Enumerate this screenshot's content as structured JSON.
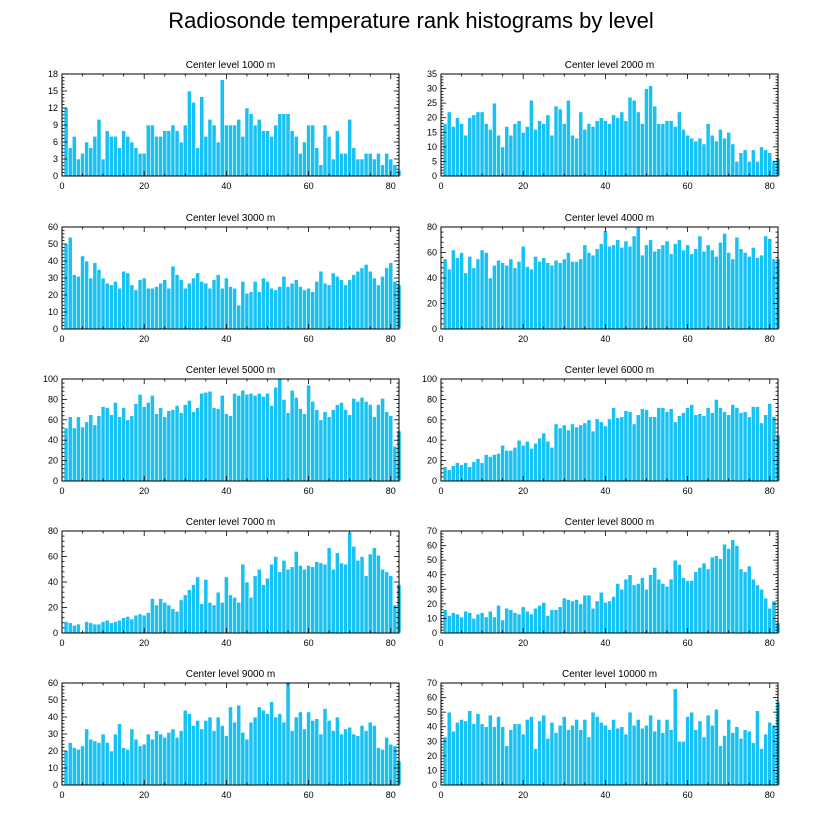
{
  "title": "Radiosonde temperature rank histograms by level",
  "colors": {
    "bar": "#16c1f3",
    "axis": "#000000",
    "background": "#ffffff"
  },
  "chart_data": [
    {
      "type": "bar",
      "title": "Center level 1000 m",
      "xlabel": "",
      "ylabel": "",
      "xlim": [
        0,
        82
      ],
      "ylim": [
        0,
        18
      ],
      "xticks": [
        0,
        20,
        40,
        60,
        80
      ],
      "yticks": [
        0,
        3,
        6,
        9,
        12,
        15,
        18
      ],
      "x_start": 1,
      "values": [
        12,
        5,
        7,
        3,
        4,
        6,
        5,
        7,
        10,
        3,
        8,
        7,
        7,
        5,
        8,
        7,
        6,
        5,
        4,
        4,
        9,
        9,
        7,
        7,
        8,
        8,
        9,
        8,
        6,
        9,
        15,
        13,
        5,
        14,
        7,
        10,
        9,
        6,
        17,
        9,
        9,
        9,
        10,
        7,
        12,
        11,
        9,
        10,
        8,
        8,
        7,
        9,
        11,
        11,
        11,
        8,
        7,
        4,
        6,
        9,
        9,
        5,
        2,
        9,
        7,
        3,
        8,
        4,
        4,
        10,
        5,
        3,
        3,
        4,
        4,
        3,
        4,
        2,
        4,
        3,
        2,
        1
      ]
    },
    {
      "type": "bar",
      "title": "Center level 2000 m",
      "xlabel": "",
      "ylabel": "",
      "xlim": [
        0,
        82
      ],
      "ylim": [
        0,
        35
      ],
      "xticks": [
        0,
        20,
        40,
        60,
        80
      ],
      "yticks": [
        0,
        5,
        10,
        15,
        20,
        25,
        30,
        35
      ],
      "x_start": 1,
      "values": [
        18,
        22,
        17,
        20,
        18,
        14,
        20,
        21,
        22,
        22,
        18,
        16,
        25,
        14,
        10,
        17,
        14,
        18,
        19,
        15,
        17,
        26,
        16,
        19,
        18,
        21,
        14,
        24,
        23,
        18,
        26,
        14,
        13,
        22,
        16,
        18,
        17,
        19,
        20,
        19,
        18,
        21,
        20,
        22,
        19,
        27,
        26,
        22,
        18,
        30,
        31,
        24,
        18,
        18,
        19,
        19,
        17,
        22,
        16,
        14,
        13,
        12,
        13,
        11,
        18,
        14,
        12,
        16,
        13,
        15,
        11,
        5,
        8,
        9,
        5,
        9,
        5,
        10,
        9,
        8,
        5,
        6
      ]
    },
    {
      "type": "bar",
      "title": "Center level 3000 m",
      "xlabel": "",
      "ylabel": "",
      "xlim": [
        0,
        82
      ],
      "ylim": [
        0,
        60
      ],
      "xticks": [
        0,
        20,
        40,
        60,
        80
      ],
      "yticks": [
        0,
        10,
        20,
        30,
        40,
        50,
        60
      ],
      "x_start": 1,
      "values": [
        50,
        54,
        32,
        31,
        43,
        40,
        30,
        39,
        35,
        30,
        27,
        26,
        28,
        24,
        34,
        33,
        26,
        23,
        29,
        30,
        24,
        24,
        25,
        27,
        29,
        24,
        37,
        32,
        29,
        24,
        27,
        30,
        33,
        28,
        27,
        24,
        29,
        32,
        24,
        30,
        25,
        24,
        14,
        28,
        21,
        22,
        28,
        22,
        30,
        28,
        24,
        23,
        25,
        31,
        25,
        27,
        29,
        25,
        23,
        24,
        22,
        28,
        34,
        27,
        26,
        33,
        31,
        29,
        26,
        29,
        32,
        34,
        36,
        38,
        34,
        30,
        26,
        31,
        36,
        39,
        28,
        26
      ]
    },
    {
      "type": "bar",
      "title": "Center level 4000 m",
      "xlabel": "",
      "ylabel": "",
      "xlim": [
        0,
        82
      ],
      "ylim": [
        0,
        80
      ],
      "xticks": [
        0,
        20,
        40,
        60,
        80
      ],
      "yticks": [
        0,
        20,
        40,
        60,
        80
      ],
      "x_start": 1,
      "values": [
        55,
        47,
        62,
        56,
        60,
        44,
        57,
        48,
        55,
        62,
        60,
        40,
        50,
        54,
        52,
        50,
        55,
        48,
        53,
        65,
        49,
        47,
        57,
        53,
        56,
        52,
        50,
        54,
        52,
        55,
        60,
        53,
        53,
        55,
        66,
        60,
        58,
        63,
        67,
        77,
        65,
        66,
        70,
        64,
        69,
        65,
        73,
        80,
        58,
        66,
        70,
        61,
        63,
        66,
        69,
        59,
        67,
        70,
        62,
        66,
        59,
        63,
        73,
        61,
        66,
        62,
        57,
        68,
        75,
        60,
        55,
        72,
        63,
        60,
        57,
        64,
        56,
        58,
        73,
        71,
        55,
        55
      ]
    },
    {
      "type": "bar",
      "title": "Center level 5000 m",
      "xlabel": "",
      "ylabel": "",
      "xlim": [
        0,
        82
      ],
      "ylim": [
        0,
        100
      ],
      "xticks": [
        0,
        20,
        40,
        60,
        80
      ],
      "yticks": [
        0,
        20,
        40,
        60,
        80,
        100
      ],
      "x_start": 1,
      "values": [
        52,
        63,
        52,
        63,
        53,
        58,
        65,
        55,
        64,
        73,
        72,
        65,
        77,
        63,
        72,
        60,
        64,
        76,
        85,
        73,
        77,
        84,
        66,
        72,
        63,
        69,
        70,
        74,
        67,
        75,
        79,
        68,
        72,
        86,
        87,
        88,
        72,
        71,
        84,
        66,
        64,
        86,
        84,
        89,
        85,
        86,
        84,
        86,
        83,
        86,
        74,
        92,
        100,
        80,
        67,
        89,
        82,
        71,
        66,
        94,
        78,
        70,
        60,
        68,
        63,
        70,
        75,
        77,
        70,
        65,
        81,
        78,
        82,
        78,
        75,
        63,
        75,
        81,
        68,
        64,
        34,
        49
      ]
    },
    {
      "type": "bar",
      "title": "Center level 6000 m",
      "xlabel": "",
      "ylabel": "",
      "xlim": [
        0,
        82
      ],
      "ylim": [
        0,
        100
      ],
      "xticks": [
        0,
        20,
        40,
        60,
        80
      ],
      "yticks": [
        0,
        20,
        40,
        60,
        80,
        100
      ],
      "x_start": 1,
      "values": [
        14,
        11,
        15,
        18,
        16,
        18,
        14,
        19,
        22,
        18,
        26,
        24,
        26,
        27,
        35,
        30,
        30,
        33,
        40,
        35,
        39,
        32,
        37,
        42,
        47,
        39,
        33,
        56,
        52,
        55,
        50,
        56,
        53,
        55,
        57,
        60,
        49,
        61,
        58,
        54,
        61,
        72,
        62,
        63,
        69,
        68,
        56,
        65,
        71,
        70,
        63,
        63,
        72,
        72,
        68,
        71,
        58,
        64,
        67,
        72,
        75,
        65,
        66,
        64,
        72,
        67,
        80,
        72,
        68,
        65,
        75,
        72,
        67,
        68,
        63,
        73,
        73,
        57,
        65,
        76,
        63,
        45
      ]
    },
    {
      "type": "bar",
      "title": "Center level 7000 m",
      "xlabel": "",
      "ylabel": "",
      "xlim": [
        0,
        82
      ],
      "ylim": [
        0,
        80
      ],
      "xticks": [
        0,
        20,
        40,
        60,
        80
      ],
      "yticks": [
        0,
        20,
        40,
        60,
        80
      ],
      "x_start": 1,
      "values": [
        9,
        8,
        6,
        7,
        1,
        9,
        8,
        7,
        7,
        9,
        10,
        8,
        9,
        10,
        12,
        13,
        11,
        14,
        15,
        14,
        16,
        27,
        22,
        27,
        24,
        22,
        19,
        17,
        26,
        30,
        34,
        38,
        44,
        23,
        42,
        24,
        22,
        32,
        24,
        44,
        30,
        28,
        24,
        54,
        40,
        28,
        45,
        50,
        38,
        43,
        54,
        60,
        48,
        57,
        50,
        52,
        64,
        53,
        50,
        53,
        52,
        56,
        55,
        54,
        67,
        50,
        63,
        55,
        54,
        79,
        68,
        57,
        60,
        45,
        62,
        67,
        61,
        50,
        48,
        45,
        22,
        38
      ]
    },
    {
      "type": "bar",
      "title": "Center level 8000 m",
      "xlabel": "",
      "ylabel": "",
      "xlim": [
        0,
        82
      ],
      "ylim": [
        0,
        70
      ],
      "xticks": [
        0,
        20,
        40,
        60,
        80
      ],
      "yticks": [
        0,
        10,
        20,
        30,
        40,
        50,
        60,
        70
      ],
      "x_start": 1,
      "values": [
        16,
        12,
        14,
        13,
        11,
        15,
        14,
        10,
        13,
        14,
        11,
        15,
        11,
        19,
        9,
        17,
        16,
        14,
        13,
        18,
        15,
        13,
        17,
        19,
        21,
        12,
        16,
        16,
        18,
        24,
        23,
        22,
        23,
        20,
        26,
        26,
        17,
        22,
        28,
        21,
        22,
        25,
        34,
        30,
        37,
        40,
        33,
        34,
        38,
        30,
        40,
        45,
        37,
        34,
        32,
        37,
        50,
        47,
        38,
        36,
        36,
        42,
        45,
        48,
        44,
        52,
        53,
        51,
        61,
        58,
        64,
        60,
        44,
        42,
        46,
        37,
        33,
        30,
        24,
        17,
        22,
        7
      ]
    },
    {
      "type": "bar",
      "title": "Center level 9000 m",
      "xlabel": "",
      "ylabel": "",
      "xlim": [
        0,
        82
      ],
      "ylim": [
        0,
        60
      ],
      "xticks": [
        0,
        20,
        40,
        60,
        80
      ],
      "yticks": [
        0,
        10,
        20,
        30,
        40,
        50,
        60
      ],
      "x_start": 1,
      "values": [
        20,
        25,
        22,
        21,
        23,
        33,
        27,
        26,
        25,
        30,
        25,
        20,
        30,
        36,
        22,
        21,
        33,
        27,
        23,
        24,
        30,
        27,
        32,
        30,
        28,
        31,
        33,
        28,
        32,
        44,
        42,
        35,
        38,
        33,
        38,
        40,
        32,
        40,
        35,
        29,
        46,
        37,
        47,
        31,
        27,
        37,
        40,
        46,
        44,
        42,
        49,
        40,
        42,
        37,
        60,
        32,
        40,
        43,
        33,
        43,
        38,
        39,
        30,
        45,
        38,
        32,
        40,
        30,
        33,
        34,
        30,
        29,
        35,
        32,
        37,
        35,
        22,
        21,
        28,
        24,
        23,
        14
      ]
    },
    {
      "type": "bar",
      "title": "Center level 10000 m",
      "xlabel": "",
      "ylabel": "",
      "xlim": [
        0,
        82
      ],
      "ylim": [
        0,
        70
      ],
      "xticks": [
        0,
        20,
        40,
        60,
        80
      ],
      "yticks": [
        0,
        10,
        20,
        30,
        40,
        50,
        60,
        70
      ],
      "x_start": 1,
      "values": [
        33,
        50,
        37,
        43,
        45,
        44,
        51,
        42,
        49,
        42,
        40,
        48,
        40,
        47,
        40,
        27,
        38,
        42,
        42,
        35,
        45,
        47,
        25,
        44,
        48,
        32,
        43,
        36,
        41,
        47,
        38,
        41,
        45,
        38,
        45,
        33,
        50,
        47,
        43,
        41,
        38,
        45,
        39,
        40,
        35,
        50,
        41,
        45,
        39,
        41,
        48,
        37,
        45,
        36,
        45,
        38,
        66,
        30,
        30,
        47,
        50,
        38,
        44,
        33,
        48,
        41,
        52,
        27,
        34,
        45,
        36,
        40,
        32,
        38,
        37,
        29,
        51,
        25,
        35,
        43,
        41,
        57
      ]
    }
  ]
}
